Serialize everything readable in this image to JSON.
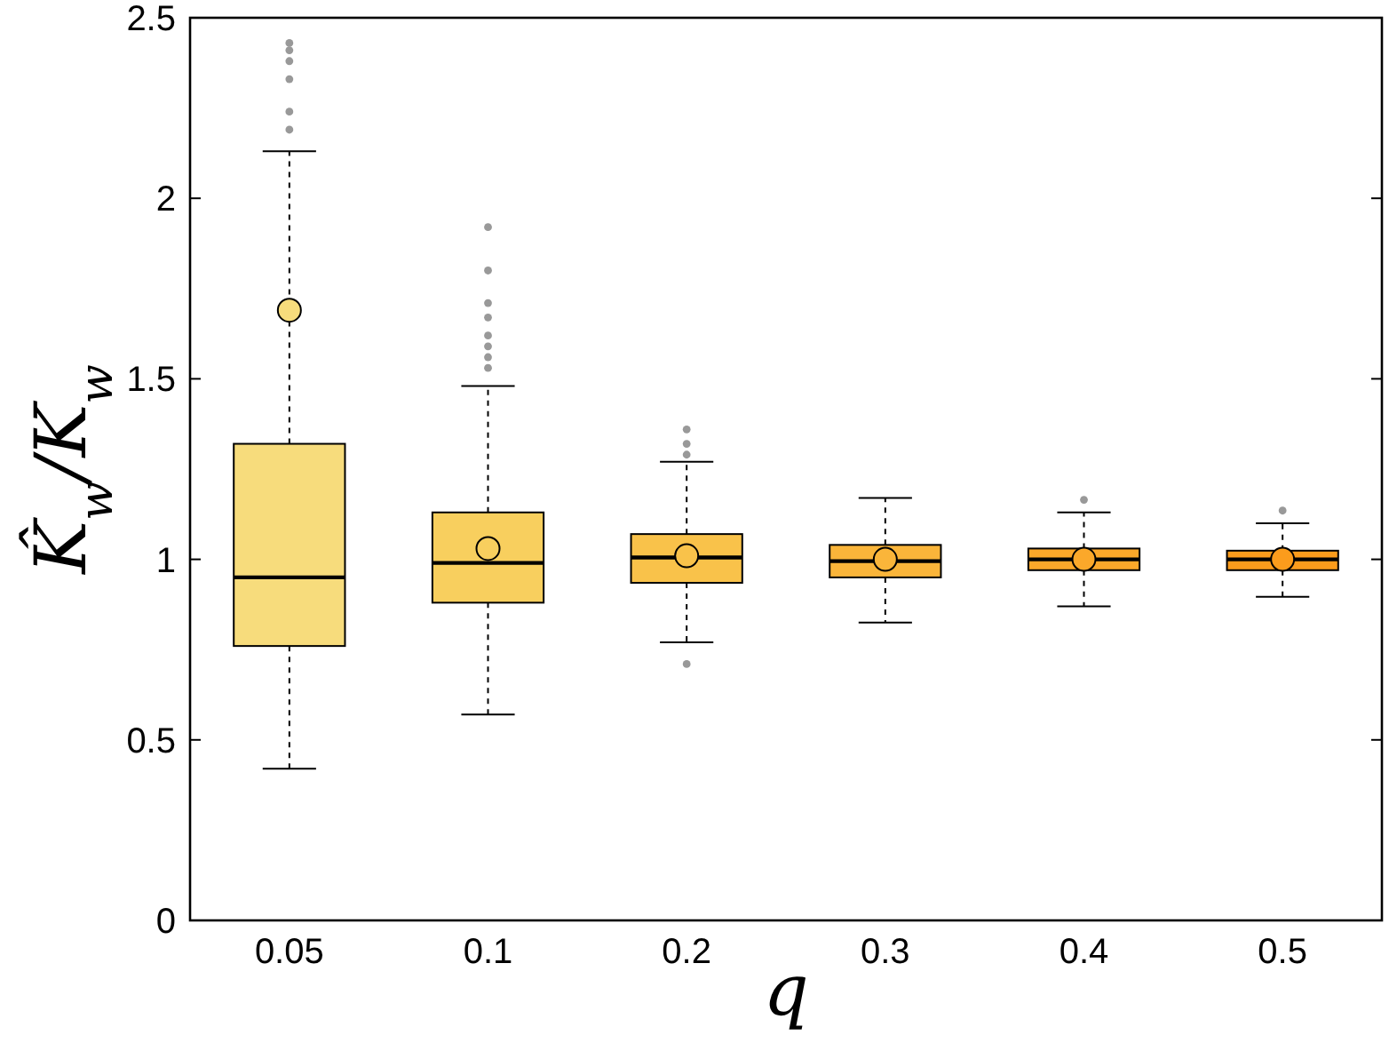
{
  "chart_data": {
    "type": "box",
    "xlabel": "q",
    "ylabel": "K̂$_{w}$/K$_{w}$",
    "categories": [
      "0.05",
      "0.1",
      "0.2",
      "0.3",
      "0.4",
      "0.5"
    ],
    "colors": [
      "#f7dc7c",
      "#f8cf5e",
      "#f9c24a",
      "#fab53a",
      "#fba82a",
      "#fb9c1c"
    ],
    "boxes": [
      {
        "low": 0.42,
        "q1": 0.76,
        "median": 0.95,
        "q3": 1.32,
        "high": 2.13,
        "mean": 1.69,
        "outliers": [
          2.19,
          2.24,
          2.33,
          2.38,
          2.41,
          2.43
        ]
      },
      {
        "low": 0.57,
        "q1": 0.88,
        "median": 0.99,
        "q3": 1.13,
        "high": 1.48,
        "mean": 1.03,
        "outliers": [
          1.53,
          1.56,
          1.59,
          1.62,
          1.67,
          1.71,
          1.8,
          1.92
        ]
      },
      {
        "low": 0.77,
        "q1": 0.935,
        "median": 1.005,
        "q3": 1.07,
        "high": 1.27,
        "mean": 1.01,
        "outliers": [
          0.71,
          1.29,
          1.32,
          1.36
        ]
      },
      {
        "low": 0.825,
        "q1": 0.95,
        "median": 0.995,
        "q3": 1.04,
        "high": 1.17,
        "mean": 1.0
      },
      {
        "low": 0.87,
        "q1": 0.97,
        "median": 1.0,
        "q3": 1.03,
        "high": 1.13,
        "mean": 1.0,
        "outliers": [
          1.165
        ]
      },
      {
        "low": 0.896,
        "q1": 0.97,
        "median": 1.0,
        "q3": 1.024,
        "high": 1.1,
        "mean": 1.0,
        "outliers": [
          1.135
        ]
      }
    ],
    "ylim": [
      0,
      2.5
    ],
    "yticks": [
      0,
      0.5,
      1,
      1.5,
      2,
      2.5
    ],
    "grid": false,
    "marker": "circle"
  }
}
